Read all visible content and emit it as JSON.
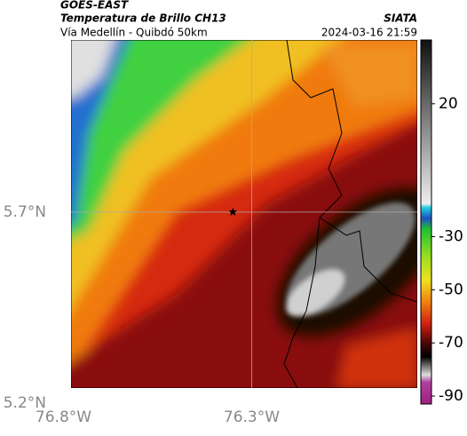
{
  "header": {
    "title": "GOES-EAST",
    "subtitle": "Temperatura de Brillo CH13",
    "route": "Vía Medellín - Quibdó 50km",
    "source": "SIATA",
    "timestamp": "2024-03-16 21:59"
  },
  "map": {
    "xlim": [
      -76.78,
      -75.86
    ],
    "ylim": [
      5.24,
      6.15
    ],
    "xticks": [
      {
        "value": -76.8,
        "label": "76.8°W"
      },
      {
        "value": -76.3,
        "label": "76.3°W"
      }
    ],
    "yticks": [
      {
        "value": 5.7,
        "label": "5.7°N"
      },
      {
        "value": 5.2,
        "label": "5.2°N"
      }
    ],
    "marker": {
      "lon": -76.35,
      "lat": 5.7
    }
  },
  "colorbar": {
    "lim": [
      -93,
      44
    ],
    "ticks": [
      20,
      -30,
      -50,
      -70,
      -90
    ]
  }
}
